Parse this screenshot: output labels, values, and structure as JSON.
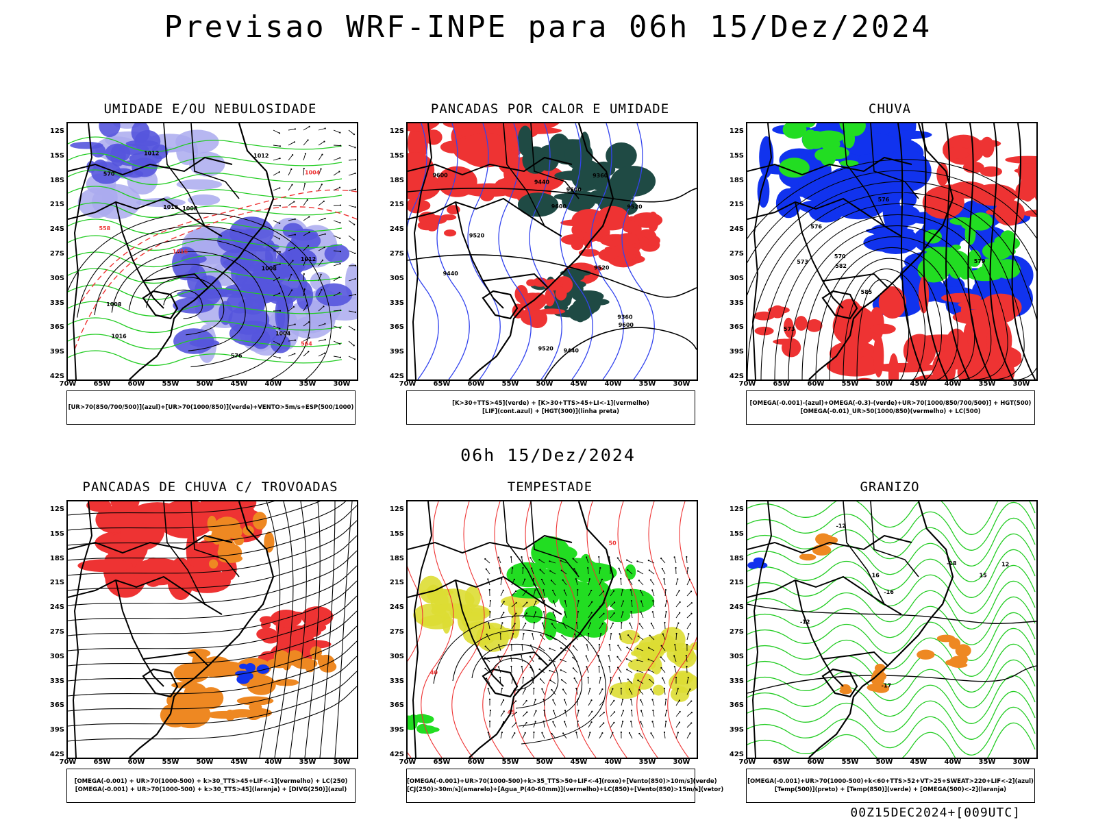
{
  "title": "Previsao WRF-INPE  para 06h 15/Dez/2024",
  "subtitle": "06h 15/Dez/2024",
  "footer": "00Z15DEC2024+[009UTC]",
  "lat_labels": [
    "12S",
    "15S",
    "18S",
    "21S",
    "24S",
    "27S",
    "30S",
    "33S",
    "36S",
    "39S",
    "42S"
  ],
  "lon_labels": [
    "70W",
    "65W",
    "60W",
    "55W",
    "50W",
    "45W",
    "40W",
    "35W",
    "30W"
  ],
  "panels": [
    {
      "title": "UMIDADE E/OU NEBULOSIDADE",
      "legend": [
        "[UR>70(850/700/500)](azul)+[UR>70(1000/850)](verde)+VENTO>5m/s+ESP(500/1000)"
      ],
      "contour_labels": [
        "1008",
        "1012",
        "1016",
        "1012",
        "1008",
        "1004",
        "1008",
        "1012",
        "1016",
        "576",
        "570",
        "564",
        "558",
        "1004",
        "1016"
      ]
    },
    {
      "title": "PANCADAS POR CALOR E UMIDADE",
      "legend": [
        "[K>30+TTS>45](verde) + [K>30+TTS>45+LI<-1](vermelho)",
        "[LIF](cont.azul) + [HGT(300)](linha preta)"
      ],
      "contour_labels": [
        "9600",
        "9600",
        "9600",
        "9520",
        "9520",
        "9440",
        "9440",
        "9360",
        "9520",
        "9440",
        "9360",
        "9600",
        "9520"
      ]
    },
    {
      "title": "CHUVA",
      "legend": [
        "[OMEGA(-0.001)-(azul)+OMEGA(-0.3)-(verde)+UR>70(1000/850/700/500)] + HGT(500)",
        "[OMEGA(-0.01)_UR>50(1000/850)(vermelho) + LC(500)"
      ],
      "contour_labels": [
        "585",
        "582",
        "579",
        "576",
        "573",
        "570",
        "576",
        "573"
      ]
    },
    {
      "title": "PANCADAS DE CHUVA C/ TROVOADAS",
      "legend": [
        "[OMEGA(-0.001) + UR>70(1000-500) + k>30_TTS>45+LIF<-1](vermelho) + LC(250)",
        "[OMEGA(-0.001) + UR>70(1000-500) + k>30_TTS>45](laranja) + [DIVG(250)](azul)"
      ],
      "contour_labels": []
    },
    {
      "title": "TEMPESTADE",
      "legend": [
        "[OMEGA(-0.001)+UR>70(1000-500)+k>35_TTS>50+LIF<-4](roxo)+[Vento(850)>10m/s](verde)",
        "[CJ(250)>30m/s](amarelo)+[Agua_P(40-60mm)](vermelho)+LC(850)+[Vento(850)>15m/s](vetor)"
      ],
      "contour_labels": [
        "50",
        "45",
        "40"
      ]
    },
    {
      "title": "GRANIZO",
      "legend": [
        "[OMEGA(-0.001)+UR>70(1000-500)+k<60+TTS>52+VT>25+SWEAT>220+LIF<-2](azul)",
        "[Temp(500)](preto) + [Temp(850)](verde) + [OMEGA(500)<-2](laranja)"
      ],
      "contour_labels": [
        "-12",
        "-12",
        "-16",
        "-18",
        "-17",
        "12",
        "16",
        "15"
      ]
    }
  ],
  "colors": {
    "humid_blue": "#5555dd",
    "humid_lightblue": "#aaaaee",
    "humid_green": "#22cc22",
    "heat_red": "#ee3333",
    "heat_darkgreen": "#1f4a44",
    "lif_blue": "#3344ee",
    "rain_blue": "#1133ee",
    "rain_green": "#22dd22",
    "storm_orange": "#ee8822",
    "storm_yellow": "#dddd33",
    "contour_red": "#ee3333"
  }
}
